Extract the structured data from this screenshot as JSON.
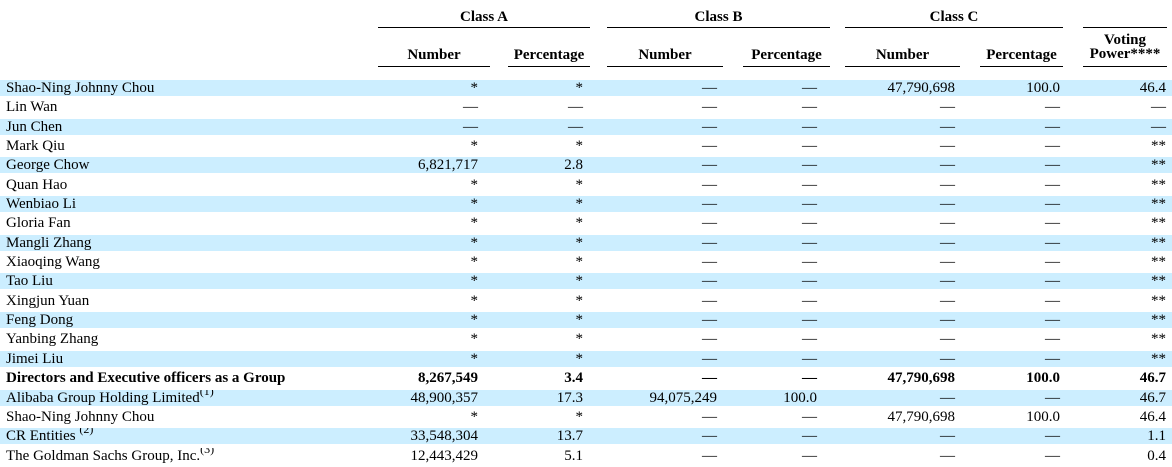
{
  "colors": {
    "row_highlight": "#cceeff",
    "rule": "#000000",
    "text": "#000000",
    "background": "#ffffff"
  },
  "header": {
    "class_a": "Class A",
    "class_b": "Class B",
    "class_c": "Class C",
    "number": "Number",
    "percentage": "Percentage",
    "voting_line1": "Voting",
    "voting_line2": "Power****"
  },
  "rows": [
    {
      "name": "Shao-Ning Johnny Chou",
      "a_num": "*",
      "a_pct": "*",
      "b_num": "—",
      "b_pct": "—",
      "c_num": "47,790,698",
      "c_pct": "100.0",
      "voting": "46.4",
      "highlight": true,
      "bold": false
    },
    {
      "name": "Lin Wan",
      "a_num": "—",
      "a_pct": "—",
      "b_num": "—",
      "b_pct": "—",
      "c_num": "—",
      "c_pct": "—",
      "voting": "—",
      "highlight": false,
      "bold": false
    },
    {
      "name": "Jun Chen",
      "a_num": "—",
      "a_pct": "—",
      "b_num": "—",
      "b_pct": "—",
      "c_num": "—",
      "c_pct": "—",
      "voting": "—",
      "highlight": true,
      "bold": false
    },
    {
      "name": "Mark Qiu",
      "a_num": "*",
      "a_pct": "*",
      "b_num": "—",
      "b_pct": "—",
      "c_num": "—",
      "c_pct": "—",
      "voting": "**",
      "highlight": false,
      "bold": false
    },
    {
      "name": "George Chow",
      "a_num": "6,821,717",
      "a_pct": "2.8",
      "b_num": "—",
      "b_pct": "—",
      "c_num": "—",
      "c_pct": "—",
      "voting": "**",
      "highlight": true,
      "bold": false
    },
    {
      "name": "Quan Hao",
      "a_num": "*",
      "a_pct": "*",
      "b_num": "—",
      "b_pct": "—",
      "c_num": "—",
      "c_pct": "—",
      "voting": "**",
      "highlight": false,
      "bold": false
    },
    {
      "name": "Wenbiao Li",
      "a_num": "*",
      "a_pct": "*",
      "b_num": "—",
      "b_pct": "—",
      "c_num": "—",
      "c_pct": "—",
      "voting": "**",
      "highlight": true,
      "bold": false
    },
    {
      "name": "Gloria Fan",
      "a_num": "*",
      "a_pct": "*",
      "b_num": "—",
      "b_pct": "—",
      "c_num": "—",
      "c_pct": "—",
      "voting": "**",
      "highlight": false,
      "bold": false
    },
    {
      "name": "Mangli Zhang",
      "a_num": "*",
      "a_pct": "*",
      "b_num": "—",
      "b_pct": "—",
      "c_num": "—",
      "c_pct": "—",
      "voting": "**",
      "highlight": true,
      "bold": false
    },
    {
      "name": "Xiaoqing Wang",
      "a_num": "*",
      "a_pct": "*",
      "b_num": "—",
      "b_pct": "—",
      "c_num": "—",
      "c_pct": "—",
      "voting": "**",
      "highlight": false,
      "bold": false
    },
    {
      "name": "Tao Liu",
      "a_num": "*",
      "a_pct": "*",
      "b_num": "—",
      "b_pct": "—",
      "c_num": "—",
      "c_pct": "—",
      "voting": "**",
      "highlight": true,
      "bold": false
    },
    {
      "name": "Xingjun Yuan",
      "a_num": "*",
      "a_pct": "*",
      "b_num": "—",
      "b_pct": "—",
      "c_num": "—",
      "c_pct": "—",
      "voting": "**",
      "highlight": false,
      "bold": false
    },
    {
      "name": "Feng Dong",
      "a_num": "*",
      "a_pct": "*",
      "b_num": "—",
      "b_pct": "—",
      "c_num": "—",
      "c_pct": "—",
      "voting": "**",
      "highlight": true,
      "bold": false
    },
    {
      "name": "Yanbing Zhang",
      "a_num": "*",
      "a_pct": "*",
      "b_num": "—",
      "b_pct": "—",
      "c_num": "—",
      "c_pct": "—",
      "voting": "**",
      "highlight": false,
      "bold": false
    },
    {
      "name": "Jimei Liu",
      "a_num": "*",
      "a_pct": "*",
      "b_num": "—",
      "b_pct": "—",
      "c_num": "—",
      "c_pct": "—",
      "voting": "**",
      "highlight": true,
      "bold": false
    },
    {
      "name": "Directors and Executive officers as a Group",
      "a_num": "8,267,549",
      "a_pct": "3.4",
      "b_num": "—",
      "b_pct": "—",
      "c_num": "47,790,698",
      "c_pct": "100.0",
      "voting": "46.7",
      "highlight": false,
      "bold": true
    },
    {
      "name": "Alibaba Group Holding Limited",
      "footnote": "(1)",
      "a_num": "48,900,357",
      "a_pct": "17.3",
      "b_num": "94,075,249",
      "b_pct": "100.0",
      "c_num": "—",
      "c_pct": "—",
      "voting": "46.7",
      "highlight": true,
      "bold": false
    },
    {
      "name": "Shao-Ning Johnny Chou",
      "a_num": "*",
      "a_pct": "*",
      "b_num": "—",
      "b_pct": "—",
      "c_num": "47,790,698",
      "c_pct": "100.0",
      "voting": "46.4",
      "highlight": false,
      "bold": false
    },
    {
      "name": "CR Entities ",
      "footnote": "(2)",
      "a_num": "33,548,304",
      "a_pct": "13.7",
      "b_num": "—",
      "b_pct": "—",
      "c_num": "—",
      "c_pct": "—",
      "voting": "1.1",
      "highlight": true,
      "bold": false
    },
    {
      "name": "The Goldman Sachs Group, Inc.",
      "footnote": "(3)",
      "a_num": "12,443,429",
      "a_pct": "5.1",
      "b_num": "—",
      "b_pct": "—",
      "c_num": "—",
      "c_pct": "—",
      "voting": "0.4",
      "highlight": false,
      "bold": false
    }
  ]
}
